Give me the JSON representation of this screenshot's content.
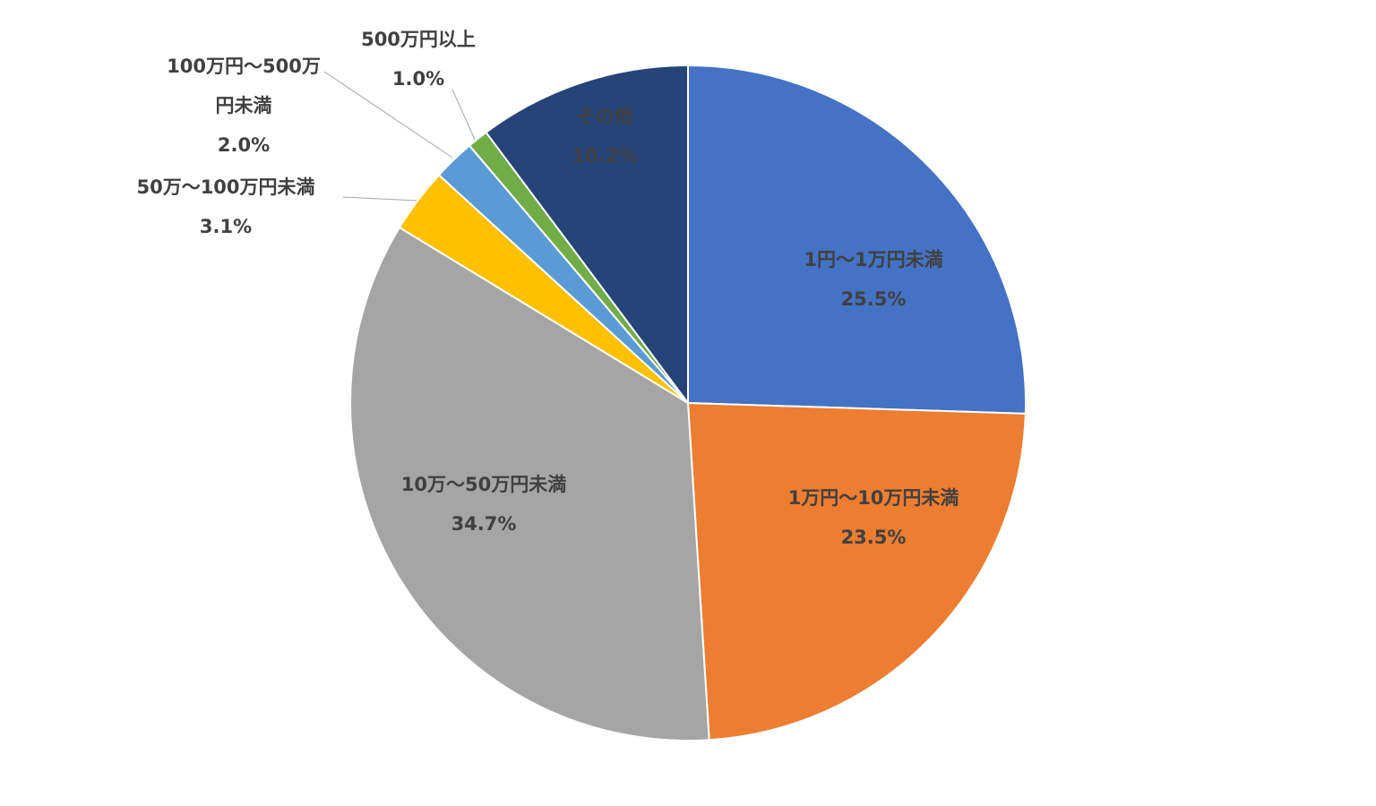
{
  "chart_data": {
    "type": "pie",
    "categories": [
      "1円～1万円未満",
      "1万円～10万円未満",
      "10万～50万円未満",
      "50万～100万円未満",
      "100万円～500万円未満",
      "500万円以上",
      "その他"
    ],
    "values": [
      25.5,
      23.5,
      34.7,
      3.1,
      2.0,
      1.0,
      10.2
    ],
    "value_labels": [
      "25.5%",
      "23.5%",
      "34.7%",
      "3.1%",
      "2.0%",
      "1.0%",
      "10.2%"
    ],
    "colors": [
      "#4472c4",
      "#ed7d31",
      "#a5a5a5",
      "#ffc000",
      "#5b9bd5",
      "#70ad47",
      "#264478"
    ]
  }
}
